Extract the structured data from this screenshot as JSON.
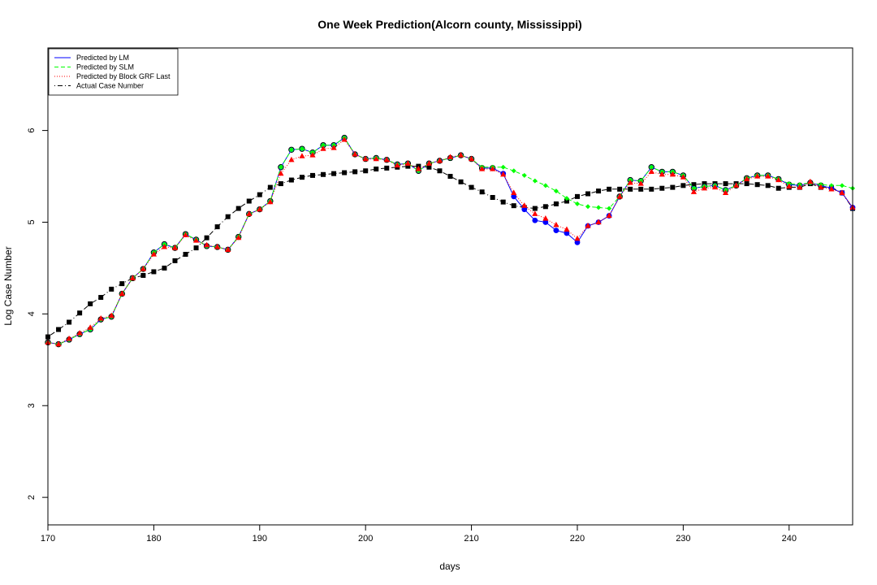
{
  "chart_data": {
    "type": "line",
    "title": "One Week Prediction(Alcorn county, Mississippi)",
    "xlabel": "days",
    "ylabel": "Log Case Number",
    "xlim": [
      170,
      246
    ],
    "ylim": [
      1.7,
      6.9
    ],
    "xticks": [
      "170",
      "180",
      "190",
      "200",
      "210",
      "220",
      "230",
      "240"
    ],
    "yticks": [
      "2",
      "3",
      "4",
      "5",
      "6"
    ],
    "legend_position": "top-left",
    "x": [
      170,
      171,
      172,
      173,
      174,
      175,
      176,
      177,
      178,
      179,
      180,
      181,
      182,
      183,
      184,
      185,
      186,
      187,
      188,
      189,
      190,
      191,
      192,
      193,
      194,
      195,
      196,
      197,
      198,
      199,
      200,
      201,
      202,
      203,
      204,
      205,
      206,
      207,
      208,
      209,
      210,
      211,
      212,
      213,
      214,
      215,
      216,
      217,
      218,
      219,
      220,
      221,
      222,
      223,
      224,
      225,
      226,
      227,
      228,
      229,
      230,
      231,
      232,
      233,
      234,
      235,
      236,
      237,
      238,
      239,
      240,
      241,
      242,
      243,
      244,
      245,
      246
    ],
    "series": [
      {
        "name": "Predicted by LM",
        "color": "#0000ff",
        "line_style": "solid",
        "marker": "circle",
        "values": [
          3.69,
          3.67,
          3.72,
          3.78,
          3.83,
          3.94,
          3.97,
          4.22,
          4.39,
          4.49,
          4.67,
          4.76,
          4.72,
          4.87,
          4.81,
          4.74,
          4.73,
          4.7,
          4.84,
          5.09,
          5.14,
          5.23,
          5.6,
          5.79,
          5.8,
          5.76,
          5.84,
          5.84,
          5.92,
          5.74,
          5.69,
          5.7,
          5.68,
          5.63,
          5.64,
          5.56,
          5.64,
          5.67,
          5.7,
          5.73,
          5.69,
          5.59,
          5.59,
          5.53,
          5.28,
          5.14,
          5.02,
          5.0,
          4.91,
          4.88,
          4.78,
          4.96,
          5.0,
          5.07,
          5.28,
          5.46,
          5.45,
          5.6,
          5.55,
          5.55,
          5.51,
          5.37,
          5.39,
          5.4,
          5.35,
          5.4,
          5.48,
          5.51,
          5.51,
          5.47,
          5.41,
          5.4,
          5.43,
          5.4,
          5.37,
          5.32,
          5.16
        ]
      },
      {
        "name": "Predicted by SLM",
        "color": "#00ff00",
        "line_style": "dashed",
        "marker": "diamond",
        "values": [
          3.69,
          3.67,
          3.72,
          3.78,
          3.83,
          3.94,
          3.97,
          4.22,
          4.39,
          4.49,
          4.67,
          4.76,
          4.72,
          4.87,
          4.81,
          4.74,
          4.73,
          4.7,
          4.84,
          5.09,
          5.14,
          5.23,
          5.6,
          5.79,
          5.8,
          5.76,
          5.84,
          5.84,
          5.92,
          5.74,
          5.69,
          5.7,
          5.68,
          5.63,
          5.64,
          5.56,
          5.64,
          5.67,
          5.7,
          5.73,
          5.69,
          5.6,
          5.6,
          5.6,
          5.56,
          5.51,
          5.45,
          5.4,
          5.34,
          5.26,
          5.2,
          5.17,
          5.16,
          5.15,
          5.28,
          5.46,
          5.45,
          5.6,
          5.55,
          5.55,
          5.51,
          5.37,
          5.39,
          5.4,
          5.35,
          5.4,
          5.48,
          5.51,
          5.51,
          5.47,
          5.42,
          5.41,
          5.43,
          5.41,
          5.4,
          5.4,
          5.37
        ]
      },
      {
        "name": "Predicted by Block GRF Last",
        "color": "#ff0000",
        "line_style": "dotted",
        "marker": "triangle",
        "values": [
          3.69,
          3.67,
          3.73,
          3.79,
          3.85,
          3.95,
          3.98,
          4.22,
          4.39,
          4.49,
          4.65,
          4.73,
          4.72,
          4.86,
          4.8,
          4.75,
          4.73,
          4.7,
          4.83,
          5.09,
          5.14,
          5.22,
          5.53,
          5.68,
          5.72,
          5.73,
          5.8,
          5.81,
          5.9,
          5.74,
          5.69,
          5.69,
          5.68,
          5.62,
          5.64,
          5.58,
          5.64,
          5.67,
          5.71,
          5.73,
          5.69,
          5.58,
          5.58,
          5.52,
          5.32,
          5.18,
          5.09,
          5.04,
          4.97,
          4.92,
          4.82,
          4.96,
          5.0,
          5.07,
          5.28,
          5.43,
          5.42,
          5.55,
          5.52,
          5.52,
          5.49,
          5.33,
          5.37,
          5.38,
          5.32,
          5.4,
          5.47,
          5.5,
          5.5,
          5.46,
          5.39,
          5.38,
          5.44,
          5.38,
          5.36,
          5.32,
          5.16
        ]
      },
      {
        "name": "Actual Case Number",
        "color": "#000000",
        "line_style": "dotdash",
        "marker": "square",
        "values": [
          3.75,
          3.83,
          3.91,
          4.01,
          4.11,
          4.18,
          4.27,
          4.33,
          4.39,
          4.42,
          4.46,
          4.5,
          4.58,
          4.65,
          4.72,
          4.83,
          4.95,
          5.06,
          5.15,
          5.23,
          5.3,
          5.38,
          5.42,
          5.46,
          5.49,
          5.51,
          5.52,
          5.53,
          5.54,
          5.55,
          5.56,
          5.58,
          5.59,
          5.6,
          5.61,
          5.61,
          5.6,
          5.56,
          5.5,
          5.44,
          5.38,
          5.33,
          5.27,
          5.22,
          5.18,
          5.16,
          5.15,
          5.17,
          5.2,
          5.23,
          5.28,
          5.31,
          5.34,
          5.36,
          5.36,
          5.36,
          5.36,
          5.36,
          5.37,
          5.38,
          5.4,
          5.41,
          5.42,
          5.42,
          5.42,
          5.42,
          5.42,
          5.41,
          5.4,
          5.37,
          5.38,
          5.38,
          5.42,
          5.38,
          5.38,
          5.32,
          5.15
        ]
      }
    ]
  }
}
